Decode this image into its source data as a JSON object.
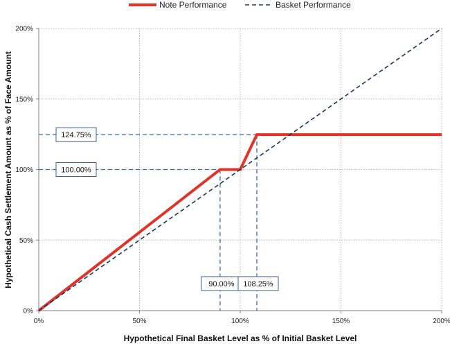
{
  "chart_data": {
    "type": "line",
    "title": "",
    "xlabel": "Hypothetical Final Basket Level as % of Initial Basket Level",
    "ylabel": "Hypothetical Cash Settlement Amount as % of Face Amount",
    "xlim": [
      0,
      200
    ],
    "ylim": [
      0,
      200
    ],
    "x_ticks": [
      0,
      50,
      100,
      150,
      200
    ],
    "y_ticks": [
      0,
      50,
      100,
      150,
      200
    ],
    "x_tick_labels": [
      "0%",
      "50%",
      "100%",
      "150%",
      "200%"
    ],
    "y_tick_labels": [
      "0%",
      "50%",
      "100%",
      "150%",
      "200%"
    ],
    "grid": true,
    "legend_position": "top",
    "series": [
      {
        "name": "Note Performance",
        "style": "solid",
        "color": "#e0332a",
        "x": [
          0,
          90,
          100,
          108.25,
          200
        ],
        "y": [
          0,
          100,
          100,
          124.75,
          124.75
        ]
      },
      {
        "name": "Basket Performance",
        "style": "dashed",
        "color": "#17365d",
        "x": [
          0,
          200
        ],
        "y": [
          0,
          200
        ]
      }
    ],
    "annotations": {
      "horizontal": [
        {
          "label": "124.75%",
          "y": 124.75,
          "x_to": 108.25
        },
        {
          "label": "100.00%",
          "y": 100,
          "x_to": 100
        }
      ],
      "vertical": [
        {
          "label": "90.00%",
          "x": 90,
          "y_from": 100
        },
        {
          "label": "108.25%",
          "x": 108.25,
          "y_from": 124.75
        }
      ],
      "line_color": "#3a6ab4"
    }
  }
}
